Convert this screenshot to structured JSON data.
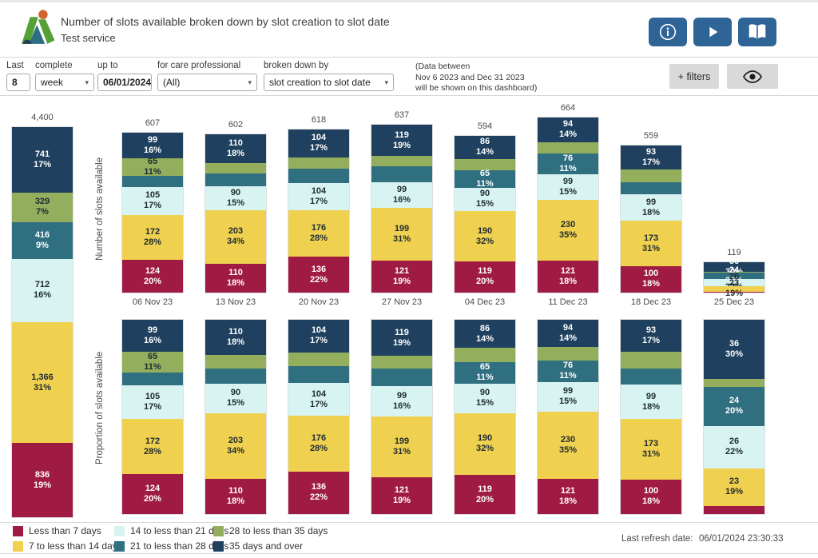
{
  "header": {
    "title": "Number of slots available broken down by slot creation to slot date",
    "subtitle": "Test service",
    "buttons": [
      {
        "name": "info-button",
        "icon": "info-icon"
      },
      {
        "name": "play-button",
        "icon": "play-icon"
      },
      {
        "name": "guide-button",
        "icon": "open-book-icon"
      }
    ]
  },
  "filters": {
    "last_label": "Last",
    "last_value": "8",
    "complete_label": "complete",
    "complete_value": "week",
    "upto_label": "up to",
    "upto_value": "06/01/2024",
    "care_label": "for care professional",
    "care_value": "(All)",
    "breakdown_label": "broken down by",
    "breakdown_value": "slot creation to slot date",
    "note_line1": "(Data between",
    "note_line2": "Nov 6 2023 and Dec 31 2023",
    "note_line3": "will be shown on this dashboard)",
    "filters_button": "+ filters",
    "eye_button": "preview-toggle"
  },
  "axes": {
    "top": "Number of slots available",
    "bottom": "Proportion of slots available"
  },
  "colors": {
    "less7": "#A01B44",
    "d7to14": "#F0D04F",
    "d14to21": "#D8F4F2",
    "d21to28": "#2F6F80",
    "d28to35": "#93AF5E",
    "d35over": "#1F405E",
    "accent_button": "#2E6496",
    "gray_button": "#D9D9D9"
  },
  "chart_data": {
    "type": "bar",
    "stacked": true,
    "grid": false,
    "buckets": [
      {
        "key": "n",
        "name": "35 days and over",
        "color": "#1F405E",
        "text": "#FFFFFF"
      },
      {
        "key": "g",
        "name": "28 to less than 35 days",
        "color": "#93AF5E",
        "text": "#1E2A32"
      },
      {
        "key": "t",
        "name": "21 to less than 28 days",
        "color": "#2F6F80",
        "text": "#FFFFFF"
      },
      {
        "key": "c",
        "name": "14 to less than 21 days",
        "color": "#D8F4F2",
        "text": "#1E2A32"
      },
      {
        "key": "y",
        "name": "7 to less than 14 days",
        "color": "#F0D04F",
        "text": "#1E2A32"
      },
      {
        "key": "r",
        "name": "Less than 7 days",
        "color": "#A01B44",
        "text": "#FFFFFF"
      }
    ],
    "total_bar": {
      "total": 4400,
      "total_label": "4,400",
      "segments": [
        {
          "v": 741,
          "label": "741",
          "pct": "17%",
          "show": true
        },
        {
          "v": 329,
          "label": "329",
          "pct": "7%",
          "show": true
        },
        {
          "v": 416,
          "label": "416",
          "pct": "9%",
          "show": true
        },
        {
          "v": 712,
          "label": "712",
          "pct": "16%",
          "show": true
        },
        {
          "v": 1366,
          "label": "1,366",
          "pct": "31%",
          "show": true
        },
        {
          "v": 836,
          "label": "836",
          "pct": "19%",
          "show": true
        }
      ]
    },
    "weeks": [
      {
        "date": "06 Nov 23",
        "total": 607,
        "total_label": "607",
        "segments": [
          {
            "v": 99,
            "label": "99",
            "pct": "16%",
            "show": true
          },
          {
            "v": 65,
            "label": "65",
            "pct": "11%",
            "show": true
          },
          {
            "v": 42,
            "show": false
          },
          {
            "v": 105,
            "label": "105",
            "pct": "17%",
            "show": true
          },
          {
            "v": 172,
            "label": "172",
            "pct": "28%",
            "show": true
          },
          {
            "v": 124,
            "label": "124",
            "pct": "20%",
            "show": true
          }
        ]
      },
      {
        "date": "13 Nov 23",
        "total": 602,
        "total_label": "602",
        "segments": [
          {
            "v": 110,
            "label": "110",
            "pct": "18%",
            "show": true
          },
          {
            "v": 40,
            "show": false
          },
          {
            "v": 49,
            "show": false
          },
          {
            "v": 90,
            "label": "90",
            "pct": "15%",
            "show": true
          },
          {
            "v": 203,
            "label": "203",
            "pct": "34%",
            "show": true
          },
          {
            "v": 110,
            "label": "110",
            "pct": "18%",
            "show": true
          }
        ]
      },
      {
        "date": "20 Nov 23",
        "total": 618,
        "total_label": "618",
        "segments": [
          {
            "v": 104,
            "label": "104",
            "pct": "17%",
            "show": true
          },
          {
            "v": 44,
            "show": false
          },
          {
            "v": 54,
            "show": false
          },
          {
            "v": 104,
            "label": "104",
            "pct": "17%",
            "show": true
          },
          {
            "v": 176,
            "label": "176",
            "pct": "28%",
            "show": true
          },
          {
            "v": 136,
            "label": "136",
            "pct": "22%",
            "show": true
          }
        ]
      },
      {
        "date": "27 Nov 23",
        "total": 637,
        "total_label": "637",
        "segments": [
          {
            "v": 119,
            "label": "119",
            "pct": "19%",
            "show": true
          },
          {
            "v": 40,
            "show": false
          },
          {
            "v": 59,
            "show": false
          },
          {
            "v": 99,
            "label": "99",
            "pct": "16%",
            "show": true
          },
          {
            "v": 199,
            "label": "199",
            "pct": "31%",
            "show": true
          },
          {
            "v": 121,
            "label": "121",
            "pct": "19%",
            "show": true
          }
        ]
      },
      {
        "date": "04 Dec 23",
        "total": 594,
        "total_label": "594",
        "segments": [
          {
            "v": 86,
            "label": "86",
            "pct": "14%",
            "show": true
          },
          {
            "v": 44,
            "show": false
          },
          {
            "v": 65,
            "label": "65",
            "pct": "11%",
            "show": true
          },
          {
            "v": 90,
            "label": "90",
            "pct": "15%",
            "show": true
          },
          {
            "v": 190,
            "label": "190",
            "pct": "32%",
            "show": true
          },
          {
            "v": 119,
            "label": "119",
            "pct": "20%",
            "show": true
          }
        ]
      },
      {
        "date": "11 Dec 23",
        "total": 664,
        "total_label": "664",
        "segments": [
          {
            "v": 94,
            "label": "94",
            "pct": "14%",
            "show": true
          },
          {
            "v": 44,
            "show": false
          },
          {
            "v": 76,
            "label": "76",
            "pct": "11%",
            "show": true
          },
          {
            "v": 99,
            "label": "99",
            "pct": "15%",
            "show": true
          },
          {
            "v": 230,
            "label": "230",
            "pct": "35%",
            "show": true
          },
          {
            "v": 121,
            "label": "121",
            "pct": "18%",
            "show": true
          }
        ]
      },
      {
        "date": "18 Dec 23",
        "total": 559,
        "total_label": "559",
        "segments": [
          {
            "v": 93,
            "label": "93",
            "pct": "17%",
            "show": true
          },
          {
            "v": 47,
            "show": false
          },
          {
            "v": 47,
            "show": false
          },
          {
            "v": 99,
            "label": "99",
            "pct": "18%",
            "show": true
          },
          {
            "v": 173,
            "label": "173",
            "pct": "31%",
            "show": true
          },
          {
            "v": 100,
            "label": "100",
            "pct": "18%",
            "show": true
          }
        ]
      },
      {
        "date": "25 Dec 23",
        "total": 119,
        "total_label": "119",
        "segments": [
          {
            "v": 36,
            "label": "36",
            "pct": "30%",
            "show": true
          },
          {
            "v": 5,
            "show": false
          },
          {
            "v": 24,
            "label": "24",
            "pct": "20%",
            "show": true
          },
          {
            "v": 26,
            "label": "26",
            "pct": "22%",
            "show": true
          },
          {
            "v": 23,
            "label": "23",
            "pct": "19%",
            "show": true
          },
          {
            "v": 5,
            "show": false
          }
        ]
      }
    ]
  },
  "legend": {
    "rows": [
      [
        {
          "key": "r",
          "label": "Less than 7 days"
        },
        {
          "key": "c",
          "label": "14 to less than 21 days"
        },
        {
          "key": "g",
          "label": "28 to less than 35 days"
        }
      ],
      [
        {
          "key": "y",
          "label": "7 to less than 14 days"
        },
        {
          "key": "t",
          "label": "21 to less than 28 days"
        },
        {
          "key": "n",
          "label": "35 days and over"
        }
      ]
    ]
  },
  "footer": {
    "label": "Last refresh date:",
    "value": "06/01/2024 23:30:33"
  }
}
